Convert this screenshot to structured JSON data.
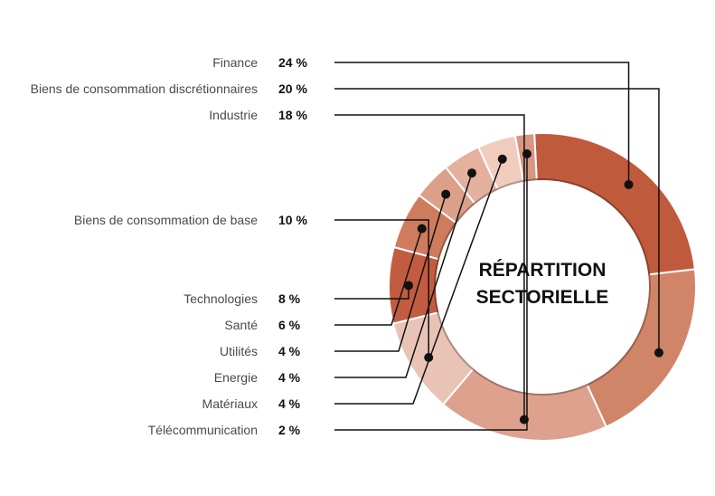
{
  "chart_data": {
    "type": "pie",
    "title": "RÉPARTITION SECTORIELLE",
    "unit_suffix": " %",
    "slices": [
      {
        "label": "Finance",
        "value": 24,
        "display": "24 %",
        "color": "#bf5a3c"
      },
      {
        "label": "Biens de consommation discrétionnaires",
        "value": 20,
        "display": "20 %",
        "color": "#d08569"
      },
      {
        "label": "Industrie",
        "value": 18,
        "display": "18 %",
        "color": "#dda18e"
      },
      {
        "label": "Biens de consommation de base",
        "value": 10,
        "display": "10 %",
        "color": "#e8c3b6"
      },
      {
        "label": "Technologies",
        "value": 8,
        "display": "8 %",
        "color": "#c25c40"
      },
      {
        "label": "Santé",
        "value": 6,
        "display": "6 %",
        "color": "#cf7b5e"
      },
      {
        "label": "Utilités",
        "value": 4,
        "display": "4 %",
        "color": "#dc9f88"
      },
      {
        "label": "Energie",
        "value": 4,
        "display": "4 %",
        "color": "#e4b19e"
      },
      {
        "label": "Matériaux",
        "value": 4,
        "display": "4 %",
        "color": "#f0ccbf"
      },
      {
        "label": "Télécommunication",
        "value": 2,
        "display": "2 %",
        "color": "#d99680"
      }
    ]
  }
}
